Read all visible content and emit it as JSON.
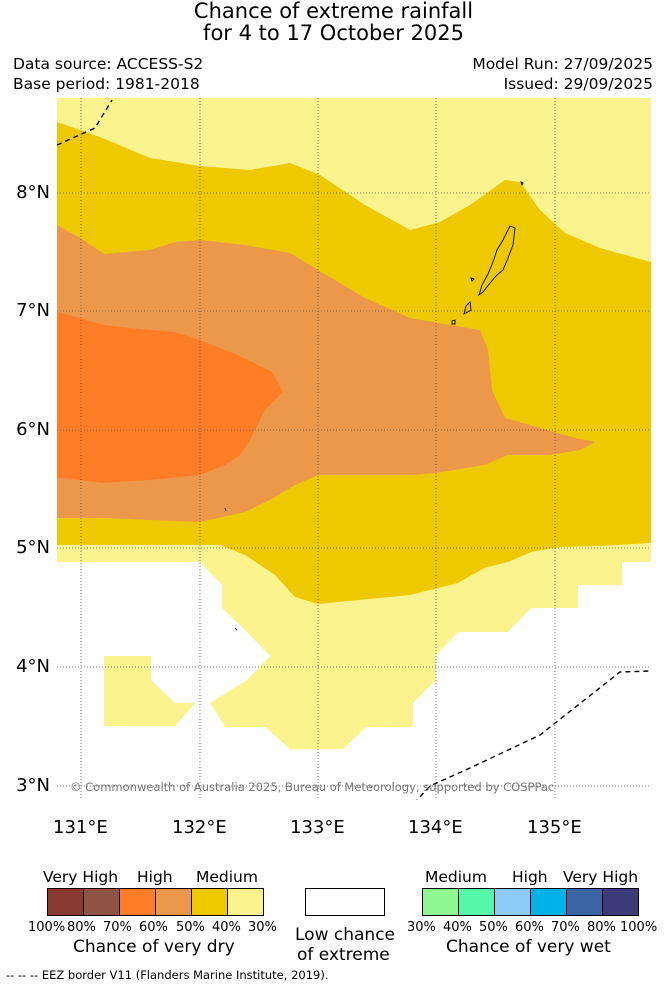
{
  "title_line1": "Chance of extreme rainfall",
  "title_line2": "for 4 to 17 October 2025",
  "data_source": "Data source: ACCESS-S2",
  "base_period": "Base period: 1981-2018",
  "model_run": "Model Run: 27/09/2025",
  "issued": "Issued: 29/09/2025",
  "copyright": "© Commonwealth of Australia 2025, Bureau of Meteorology, supported by COSPPac",
  "eez_note": "--  --  -- EEZ border V11 (Flanders Marine Institute, 2019).",
  "map": {
    "lon_labels": [
      "131°E",
      "132°E",
      "133°E",
      "134°E",
      "135°E"
    ],
    "lat_labels": [
      "8°N",
      "7°N",
      "6°N",
      "5°N",
      "4°N",
      "3°N"
    ],
    "zone_colors": {
      "medium_dry": "#eec900",
      "low_medium_dry": "#fbf48e",
      "high_dry_50_60": "#ec984a",
      "high_dry_60_70": "#ff7d26",
      "low_chance": "#ffffff"
    }
  },
  "legend_dry": {
    "headings": [
      "Very High",
      "High",
      "Medium"
    ],
    "percents": [
      "100%",
      "80%",
      "70%",
      "60%",
      "50%",
      "40%",
      "30%"
    ],
    "colors": [
      "#8b3a32",
      "#8e5342",
      "#ff7d26",
      "#ec984a",
      "#eec900",
      "#fbf48e"
    ],
    "title": "Chance of very dry"
  },
  "legend_low": {
    "line1": "Low chance",
    "line2": "of extreme",
    "color": "#ffffff"
  },
  "legend_wet": {
    "headings": [
      "Medium",
      "High",
      "Very High"
    ],
    "percents": [
      "30%",
      "40%",
      "50%",
      "60%",
      "70%",
      "80%",
      "100%"
    ],
    "colors": [
      "#90f890",
      "#54f8a8",
      "#8ccafa",
      "#00b2e8",
      "#3a64a2",
      "#3d3a7a"
    ],
    "title": "Chance of very wet"
  }
}
